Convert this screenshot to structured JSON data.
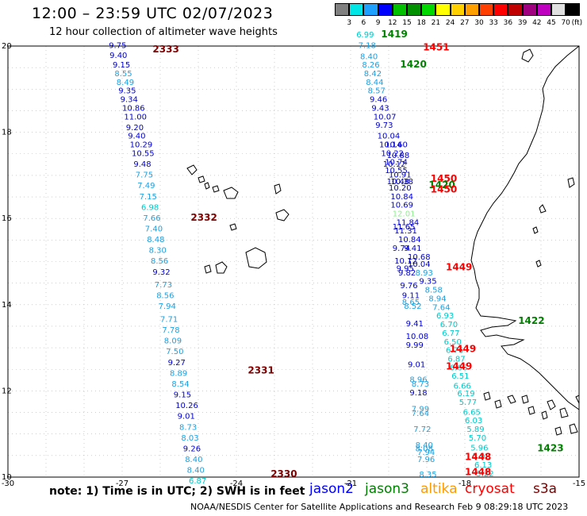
{
  "header": {
    "title": "12:00 – 23:59 UTC 02/07/2023",
    "subtitle": "12 hour collection of altimeter wave heights"
  },
  "colorbar": {
    "unit": "(ft)",
    "colors": [
      "#808080",
      "#00e5e5",
      "#1ea0ff",
      "#0000ff",
      "#00c000",
      "#009000",
      "#00d800",
      "#ffff00",
      "#ffd000",
      "#ffa000",
      "#ff4000",
      "#ff0000",
      "#c00000",
      "#a00080",
      "#c000c0",
      "#e0e0e0",
      "#000000"
    ],
    "labels": [
      "3",
      "6",
      "9",
      "12",
      "15",
      "18",
      "21",
      "24",
      "27",
      "30",
      "33",
      "36",
      "39",
      "42",
      "45",
      "70"
    ]
  },
  "axes": {
    "x_ticks": [
      "-30",
      "-27",
      "-24",
      "-21",
      "-18",
      "-15"
    ],
    "y_ticks": [
      "20",
      "18",
      "16",
      "14",
      "12",
      "10"
    ]
  },
  "satellites": [
    {
      "name": "jason2",
      "color": "#0000ff"
    },
    {
      "name": "jason3",
      "color": "#008000"
    },
    {
      "name": "altika",
      "color": "#ff9900"
    },
    {
      "name": "cryosat",
      "color": "#ff0000"
    },
    {
      "name": "s3a",
      "color": "#800000"
    }
  ],
  "note": "note: 1) Time is in UTC; 2) SWH is in feet",
  "credit": "NOAA/NESDIS Center for Satellite Applications and Research   Feb  9 08:29:18 UTC 2023",
  "track_labels": [
    {
      "text": "2333",
      "lon": -26.2,
      "lat": 19.85,
      "color": "#800000"
    },
    {
      "text": "2332",
      "lon": -25.2,
      "lat": 15.95,
      "color": "#800000"
    },
    {
      "text": "2331",
      "lon": -23.7,
      "lat": 12.4,
      "color": "#800000"
    },
    {
      "text": "2330",
      "lon": -23.1,
      "lat": 10.0,
      "color": "#800000"
    },
    {
      "text": "1419",
      "lon": -20.2,
      "lat": 20.2,
      "color": "#008000"
    },
    {
      "text": "1451",
      "lon": -19.1,
      "lat": 19.9,
      "color": "#ff0000"
    },
    {
      "text": "1420",
      "lon": -19.7,
      "lat": 19.5,
      "color": "#008000"
    },
    {
      "text": "1450",
      "lon": -18.9,
      "lat": 16.85,
      "color": "#ff0000"
    },
    {
      "text": "1420",
      "lon": -18.95,
      "lat": 16.7,
      "color": "#008000"
    },
    {
      "text": "1450",
      "lon": -18.9,
      "lat": 16.6,
      "color": "#ff0000"
    },
    {
      "text": "1449",
      "lon": -18.5,
      "lat": 14.8,
      "color": "#ff0000"
    },
    {
      "text": "1422",
      "lon": -16.6,
      "lat": 13.55,
      "color": "#008000"
    },
    {
      "text": "1449",
      "lon": -18.4,
      "lat": 12.9,
      "color": "#ff0000"
    },
    {
      "text": "1449",
      "lon": -18.5,
      "lat": 12.5,
      "color": "#ff0000"
    },
    {
      "text": "1423",
      "lon": -16.1,
      "lat": 10.6,
      "color": "#008000"
    },
    {
      "text": "1448",
      "lon": -18.0,
      "lat": 10.4,
      "color": "#ff0000"
    },
    {
      "text": "1448",
      "lon": -18.0,
      "lat": 10.05,
      "color": "#ff0000"
    }
  ],
  "observations": [
    {
      "v": "9.75",
      "lon": -27.35,
      "lat": 19.95,
      "c": "#0000cd"
    },
    {
      "v": "9.40",
      "lon": -27.33,
      "lat": 19.72,
      "c": "#0000cd"
    },
    {
      "v": "9.15",
      "lon": -27.25,
      "lat": 19.5,
      "c": "#0000cd"
    },
    {
      "v": "8.55",
      "lon": -27.2,
      "lat": 19.3,
      "c": "#1ea0e0"
    },
    {
      "v": "8.49",
      "lon": -27.15,
      "lat": 19.1,
      "c": "#1ea0e0"
    },
    {
      "v": "9.35",
      "lon": -27.1,
      "lat": 18.9,
      "c": "#0000cd"
    },
    {
      "v": "9.34",
      "lon": -27.05,
      "lat": 18.7,
      "c": "#0000cd"
    },
    {
      "v": "10.86",
      "lon": -27.0,
      "lat": 18.5,
      "c": "#0000cd"
    },
    {
      "v": "11.00",
      "lon": -26.95,
      "lat": 18.3,
      "c": "#0000cd"
    },
    {
      "v": "9.20",
      "lon": -26.9,
      "lat": 18.05,
      "c": "#0000cd"
    },
    {
      "v": "9.40",
      "lon": -26.85,
      "lat": 17.85,
      "c": "#0000cd"
    },
    {
      "v": "10.29",
      "lon": -26.8,
      "lat": 17.65,
      "c": "#0000cd"
    },
    {
      "v": "10.55",
      "lon": -26.75,
      "lat": 17.45,
      "c": "#0000cd"
    },
    {
      "v": "9.48",
      "lon": -26.7,
      "lat": 17.2,
      "c": "#0000cd"
    },
    {
      "v": "7.75",
      "lon": -26.65,
      "lat": 16.95,
      "c": "#1ea0e0"
    },
    {
      "v": "7.49",
      "lon": -26.6,
      "lat": 16.7,
      "c": "#1ea0e0"
    },
    {
      "v": "7.15",
      "lon": -26.55,
      "lat": 16.45,
      "c": "#1ea0e0"
    },
    {
      "v": "6.98",
      "lon": -26.5,
      "lat": 16.2,
      "c": "#00c8c8"
    },
    {
      "v": "7.66",
      "lon": -26.45,
      "lat": 15.95,
      "c": "#1ea0e0"
    },
    {
      "v": "7.40",
      "lon": -26.4,
      "lat": 15.7,
      "c": "#1ea0e0"
    },
    {
      "v": "8.48",
      "lon": -26.35,
      "lat": 15.45,
      "c": "#1ea0e0"
    },
    {
      "v": "8.30",
      "lon": -26.3,
      "lat": 15.2,
      "c": "#1ea0e0"
    },
    {
      "v": "8.56",
      "lon": -26.25,
      "lat": 14.95,
      "c": "#1ea0e0"
    },
    {
      "v": "9.32",
      "lon": -26.2,
      "lat": 14.7,
      "c": "#0000cd"
    },
    {
      "v": "7.73",
      "lon": -26.15,
      "lat": 14.4,
      "c": "#1ea0e0"
    },
    {
      "v": "8.56",
      "lon": -26.1,
      "lat": 14.15,
      "c": "#1ea0e0"
    },
    {
      "v": "7.94",
      "lon": -26.05,
      "lat": 13.9,
      "c": "#1ea0e0"
    },
    {
      "v": "7.71",
      "lon": -26.0,
      "lat": 13.6,
      "c": "#1ea0e0"
    },
    {
      "v": "7.78",
      "lon": -25.95,
      "lat": 13.35,
      "c": "#1ea0e0"
    },
    {
      "v": "8.09",
      "lon": -25.9,
      "lat": 13.1,
      "c": "#1ea0e0"
    },
    {
      "v": "7.50",
      "lon": -25.85,
      "lat": 12.85,
      "c": "#1ea0e0"
    },
    {
      "v": "9.27",
      "lon": -25.8,
      "lat": 12.6,
      "c": "#0000cd"
    },
    {
      "v": "8.89",
      "lon": -25.75,
      "lat": 12.35,
      "c": "#1ea0e0"
    },
    {
      "v": "8.54",
      "lon": -25.7,
      "lat": 12.1,
      "c": "#1ea0e0"
    },
    {
      "v": "9.15",
      "lon": -25.65,
      "lat": 11.85,
      "c": "#0000cd"
    },
    {
      "v": "10.26",
      "lon": -25.6,
      "lat": 11.6,
      "c": "#0000cd"
    },
    {
      "v": "9.01",
      "lon": -25.55,
      "lat": 11.35,
      "c": "#0000cd"
    },
    {
      "v": "8.73",
      "lon": -25.5,
      "lat": 11.1,
      "c": "#1ea0e0"
    },
    {
      "v": "8.03",
      "lon": -25.45,
      "lat": 10.85,
      "c": "#1ea0e0"
    },
    {
      "v": "9.26",
      "lon": -25.4,
      "lat": 10.6,
      "c": "#0000cd"
    },
    {
      "v": "8.40",
      "lon": -25.35,
      "lat": 10.35,
      "c": "#1ea0e0"
    },
    {
      "v": "8.40",
      "lon": -25.3,
      "lat": 10.1,
      "c": "#1ea0e0"
    },
    {
      "v": "6.87",
      "lon": -25.25,
      "lat": 9.85,
      "c": "#00c8c8"
    },
    {
      "v": "6.99",
      "lon": -20.85,
      "lat": 20.2,
      "c": "#00c8c8"
    },
    {
      "v": "7.18",
      "lon": -20.8,
      "lat": 19.95,
      "c": "#1ea0e0"
    },
    {
      "v": "8.40",
      "lon": -20.75,
      "lat": 19.7,
      "c": "#1ea0e0"
    },
    {
      "v": "8.26",
      "lon": -20.7,
      "lat": 19.5,
      "c": "#1ea0e0"
    },
    {
      "v": "8.42",
      "lon": -20.65,
      "lat": 19.3,
      "c": "#1ea0e0"
    },
    {
      "v": "8.44",
      "lon": -20.6,
      "lat": 19.1,
      "c": "#1ea0e0"
    },
    {
      "v": "8.57",
      "lon": -20.55,
      "lat": 18.9,
      "c": "#1ea0e0"
    },
    {
      "v": "9.46",
      "lon": -20.5,
      "lat": 18.7,
      "c": "#0000cd"
    },
    {
      "v": "9.43",
      "lon": -20.45,
      "lat": 18.5,
      "c": "#0000cd"
    },
    {
      "v": "10.07",
      "lon": -20.4,
      "lat": 18.3,
      "c": "#0000cd"
    },
    {
      "v": "9.73",
      "lon": -20.35,
      "lat": 18.1,
      "c": "#0000cd"
    },
    {
      "v": "10.04",
      "lon": -20.3,
      "lat": 17.85,
      "c": "#0000cd"
    },
    {
      "v": "10.14",
      "lon": -20.25,
      "lat": 17.65,
      "c": "#0000cd"
    },
    {
      "v": "10.60",
      "lon": -20.1,
      "lat": 17.65,
      "c": "#0000cd"
    },
    {
      "v": "10.22",
      "lon": -20.2,
      "lat": 17.45,
      "c": "#0000cd"
    },
    {
      "v": "10.88",
      "lon": -20.05,
      "lat": 17.4,
      "c": "#0000cd"
    },
    {
      "v": "10.74",
      "lon": -20.1,
      "lat": 17.25,
      "c": "#0000cd"
    },
    {
      "v": "10.12",
      "lon": -20.15,
      "lat": 17.2,
      "c": "#0000cd"
    },
    {
      "v": "10.55",
      "lon": -20.1,
      "lat": 17.05,
      "c": "#0000cd"
    },
    {
      "v": "10.91",
      "lon": -20.0,
      "lat": 16.95,
      "c": "#0000cd"
    },
    {
      "v": "10.48",
      "lon": -20.05,
      "lat": 16.8,
      "c": "#0000cd"
    },
    {
      "v": "10.38",
      "lon": -19.95,
      "lat": 16.8,
      "c": "#0000cd"
    },
    {
      "v": "10.20",
      "lon": -20.0,
      "lat": 16.65,
      "c": "#0000cd"
    },
    {
      "v": "10.84",
      "lon": -19.95,
      "lat": 16.45,
      "c": "#0000cd"
    },
    {
      "v": "10.69",
      "lon": -19.95,
      "lat": 16.25,
      "c": "#0000cd"
    },
    {
      "v": "12.01",
      "lon": -19.9,
      "lat": 16.05,
      "c": "#90ee90"
    },
    {
      "v": "11.84",
      "lon": -19.8,
      "lat": 15.85,
      "c": "#0000cd"
    },
    {
      "v": "11.65",
      "lon": -19.9,
      "lat": 15.75,
      "c": "#0000cd"
    },
    {
      "v": "11.31",
      "lon": -19.85,
      "lat": 15.65,
      "c": "#0000cd"
    },
    {
      "v": "10.84",
      "lon": -19.75,
      "lat": 15.45,
      "c": "#0000cd"
    },
    {
      "v": "9.74",
      "lon": -19.9,
      "lat": 15.25,
      "c": "#0000cd"
    },
    {
      "v": "9.41",
      "lon": -19.6,
      "lat": 15.25,
      "c": "#0000cd"
    },
    {
      "v": "10.68",
      "lon": -19.5,
      "lat": 15.05,
      "c": "#0000cd"
    },
    {
      "v": "10.12",
      "lon": -19.85,
      "lat": 14.95,
      "c": "#0000cd"
    },
    {
      "v": "10.04",
      "lon": -19.5,
      "lat": 14.88,
      "c": "#0000cd"
    },
    {
      "v": "9.95",
      "lon": -19.8,
      "lat": 14.78,
      "c": "#0000cd"
    },
    {
      "v": "9.82",
      "lon": -19.75,
      "lat": 14.68,
      "c": "#0000cd"
    },
    {
      "v": "8.93",
      "lon": -19.3,
      "lat": 14.68,
      "c": "#1ea0e0"
    },
    {
      "v": "9.35",
      "lon": -19.2,
      "lat": 14.48,
      "c": "#0000cd"
    },
    {
      "v": "9.76",
      "lon": -19.7,
      "lat": 14.38,
      "c": "#0000cd"
    },
    {
      "v": "8.58",
      "lon": -19.05,
      "lat": 14.28,
      "c": "#1ea0e0"
    },
    {
      "v": "9.11",
      "lon": -19.65,
      "lat": 14.15,
      "c": "#0000cd"
    },
    {
      "v": "8.94",
      "lon": -18.95,
      "lat": 14.08,
      "c": "#1ea0e0"
    },
    {
      "v": "8.65",
      "lon": -19.65,
      "lat": 14.0,
      "c": "#1ea0e0"
    },
    {
      "v": "8.52",
      "lon": -19.6,
      "lat": 13.9,
      "c": "#1ea0e0"
    },
    {
      "v": "7.64",
      "lon": -18.85,
      "lat": 13.88,
      "c": "#1ea0e0"
    },
    {
      "v": "6.93",
      "lon": -18.75,
      "lat": 13.68,
      "c": "#00c8c8"
    },
    {
      "v": "9.41",
      "lon": -19.55,
      "lat": 13.5,
      "c": "#0000cd"
    },
    {
      "v": "6.70",
      "lon": -18.65,
      "lat": 13.48,
      "c": "#00c8c8"
    },
    {
      "v": "6.77",
      "lon": -18.6,
      "lat": 13.28,
      "c": "#00c8c8"
    },
    {
      "v": "10.08",
      "lon": -19.55,
      "lat": 13.2,
      "c": "#0000cd"
    },
    {
      "v": "6.50",
      "lon": -18.55,
      "lat": 13.08,
      "c": "#00c8c8"
    },
    {
      "v": "9.99",
      "lon": -19.55,
      "lat": 13.0,
      "c": "#0000cd"
    },
    {
      "v": "6.76",
      "lon": -18.5,
      "lat": 12.88,
      "c": "#00c8c8"
    },
    {
      "v": "6.87",
      "lon": -18.45,
      "lat": 12.68,
      "c": "#00c8c8"
    },
    {
      "v": "6.66",
      "lon": -18.4,
      "lat": 12.48,
      "c": "#00c8c8"
    },
    {
      "v": "9.01",
      "lon": -19.5,
      "lat": 12.55,
      "c": "#0000cd"
    },
    {
      "v": "6.51",
      "lon": -18.35,
      "lat": 12.28,
      "c": "#00c8c8"
    },
    {
      "v": "6.66",
      "lon": -18.3,
      "lat": 12.05,
      "c": "#00c8c8"
    },
    {
      "v": "8.96",
      "lon": -19.45,
      "lat": 12.2,
      "c": "#1ea0e0"
    },
    {
      "v": "8.73",
      "lon": -19.4,
      "lat": 12.1,
      "c": "#1ea0e0"
    },
    {
      "v": "9.18",
      "lon": -19.45,
      "lat": 11.9,
      "c": "#0000cd"
    },
    {
      "v": "6.19",
      "lon": -18.2,
      "lat": 11.88,
      "c": "#00c8c8"
    },
    {
      "v": "5.77",
      "lon": -18.15,
      "lat": 11.68,
      "c": "#00c8c8"
    },
    {
      "v": "7.99",
      "lon": -19.4,
      "lat": 11.52,
      "c": "#1ea0e0"
    },
    {
      "v": "7.64",
      "lon": -19.4,
      "lat": 11.42,
      "c": "#1ea0e0"
    },
    {
      "v": "6.65",
      "lon": -18.05,
      "lat": 11.45,
      "c": "#00c8c8"
    },
    {
      "v": "6.03",
      "lon": -18.0,
      "lat": 11.25,
      "c": "#00c8c8"
    },
    {
      "v": "7.72",
      "lon": -19.35,
      "lat": 11.05,
      "c": "#1ea0e0"
    },
    {
      "v": "5.89",
      "lon": -17.95,
      "lat": 11.05,
      "c": "#00c8c8"
    },
    {
      "v": "5.70",
      "lon": -17.9,
      "lat": 10.85,
      "c": "#00c8c8"
    },
    {
      "v": "8.40",
      "lon": -19.3,
      "lat": 10.68,
      "c": "#1ea0e0"
    },
    {
      "v": "8.08",
      "lon": -19.3,
      "lat": 10.6,
      "c": "#1ea0e0"
    },
    {
      "v": "5.96",
      "lon": -17.85,
      "lat": 10.62,
      "c": "#00c8c8"
    },
    {
      "v": "7.94",
      "lon": -19.25,
      "lat": 10.52,
      "c": "#1ea0e0"
    },
    {
      "v": "5.92",
      "lon": -17.8,
      "lat": 10.42,
      "c": "#00c8c8"
    },
    {
      "v": "7.96",
      "lon": -19.25,
      "lat": 10.35,
      "c": "#1ea0e0"
    },
    {
      "v": "6.13",
      "lon": -17.75,
      "lat": 10.22,
      "c": "#00c8c8"
    },
    {
      "v": "8.35",
      "lon": -19.2,
      "lat": 10.0,
      "c": "#1ea0e0"
    },
    {
      "v": "5.22",
      "lon": -17.7,
      "lat": 10.02,
      "c": "#00c8c8"
    }
  ]
}
